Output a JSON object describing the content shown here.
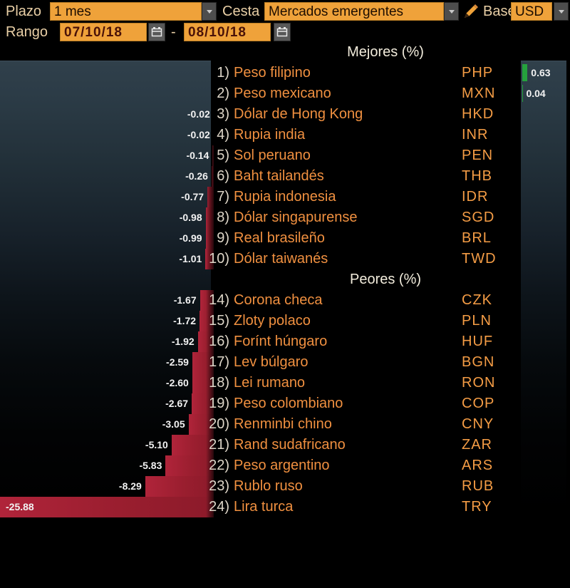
{
  "toolbar": {
    "plazo_label": "Plazo",
    "plazo_value": "1 mes",
    "cesta_label": "Cesta",
    "cesta_value": "Mercados emergentes",
    "base_label": "Base",
    "base_value": "USD",
    "rango_label": "Rango",
    "date_from": "07/10/18",
    "date_to": "08/10/18",
    "range_separator": "-",
    "icons": {
      "dropdown": "chevron-down-icon",
      "calendar": "calendar-icon",
      "edit": "pencil-icon"
    }
  },
  "colors": {
    "field_orange": "#efa23a",
    "bar_negative_red": "#9a1e2f",
    "bar_positive_green": "#25a13d",
    "list_text_orange": "#f09040",
    "rank_text": "#ded6c8",
    "value_text": "#f2f2f2",
    "label_text": "#e9cfa6",
    "chart_bg_top": "#30404b",
    "background": "#000000"
  },
  "chart_data": {
    "type": "bar",
    "orientation": "horizontal",
    "unit": "%",
    "base_currency": "USD",
    "period": "1 mes",
    "range": [
      "07/10/18",
      "08/10/18"
    ],
    "sections": [
      {
        "title": "Mejores (%)",
        "rows": [
          {
            "rank": "1)",
            "name": "Peso filipino",
            "code": "PHP",
            "value": 0.63,
            "label": "0.63"
          },
          {
            "rank": "2)",
            "name": "Peso mexicano",
            "code": "MXN",
            "value": 0.04,
            "label": "0.04"
          },
          {
            "rank": "3)",
            "name": "Dólar de Hong Kong",
            "code": "HKD",
            "value": -0.02,
            "label": "-0.02"
          },
          {
            "rank": "4)",
            "name": "Rupia india",
            "code": "INR",
            "value": -0.02,
            "label": "-0.02"
          },
          {
            "rank": "5)",
            "name": "Sol peruano",
            "code": "PEN",
            "value": -0.14,
            "label": "-0.14"
          },
          {
            "rank": "6)",
            "name": "Baht tailandés",
            "code": "THB",
            "value": -0.26,
            "label": "-0.26"
          },
          {
            "rank": "7)",
            "name": "Rupia indonesia",
            "code": "IDR",
            "value": -0.77,
            "label": "-0.77"
          },
          {
            "rank": "8)",
            "name": "Dólar singapurense",
            "code": "SGD",
            "value": -0.98,
            "label": "-0.98"
          },
          {
            "rank": "9)",
            "name": "Real brasileño",
            "code": "BRL",
            "value": -0.99,
            "label": "-0.99"
          },
          {
            "rank": "10)",
            "name": "Dólar taiwanés",
            "code": "TWD",
            "value": -1.01,
            "label": "-1.01"
          }
        ]
      },
      {
        "title": "Peores (%)",
        "rows": [
          {
            "rank": "14)",
            "name": "Corona checa",
            "code": "CZK",
            "value": -1.67,
            "label": "-1.67"
          },
          {
            "rank": "15)",
            "name": "Zloty polaco",
            "code": "PLN",
            "value": -1.72,
            "label": "-1.72"
          },
          {
            "rank": "16)",
            "name": "Forínt húngaro",
            "code": "HUF",
            "value": -1.92,
            "label": "-1.92"
          },
          {
            "rank": "17)",
            "name": "Lev búlgaro",
            "code": "BGN",
            "value": -2.59,
            "label": "-2.59"
          },
          {
            "rank": "18)",
            "name": "Lei rumano",
            "code": "RON",
            "value": -2.6,
            "label": "-2.60"
          },
          {
            "rank": "19)",
            "name": "Peso colombiano",
            "code": "COP",
            "value": -2.67,
            "label": "-2.67"
          },
          {
            "rank": "20)",
            "name": "Renminbi chino",
            "code": "CNY",
            "value": -3.05,
            "label": "-3.05"
          },
          {
            "rank": "21)",
            "name": "Rand sudafricano",
            "code": "ZAR",
            "value": -5.1,
            "label": "-5.10"
          },
          {
            "rank": "22)",
            "name": "Peso argentino",
            "code": "ARS",
            "value": -5.83,
            "label": "-5.83"
          },
          {
            "rank": "23)",
            "name": "Rublo ruso",
            "code": "RUB",
            "value": -8.29,
            "label": "-8.29"
          },
          {
            "rank": "24)",
            "name": "Lira turca",
            "code": "TRY",
            "value": -25.88,
            "label": "-25.88"
          }
        ]
      }
    ]
  }
}
